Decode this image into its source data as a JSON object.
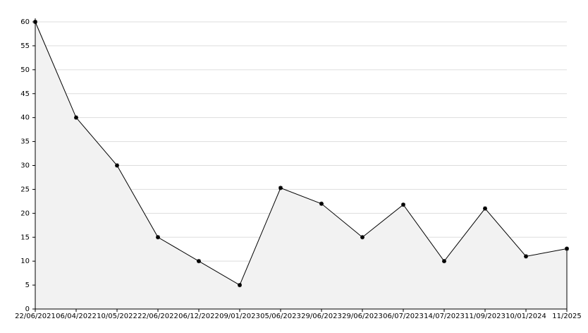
{
  "chart_data": {
    "type": "line",
    "categories": [
      "22/06/2021",
      "06/04/2022",
      "10/05/2022",
      "22/06/2022",
      "06/12/2022",
      "09/01/2023",
      "05/06/2023",
      "29/06/2023",
      "29/06/2023",
      "06/07/2023",
      "14/07/2023",
      "11/09/2023",
      "10/01/2024",
      "11/2025"
    ],
    "values": [
      60,
      40,
      30,
      15,
      10,
      5,
      25.3,
      22,
      15,
      21.8,
      10,
      21,
      11,
      12.6
    ],
    "color": "#000000",
    "fill": "#f2f2f2",
    "ylim": [
      0,
      60
    ],
    "yticks": [
      0,
      5,
      10,
      15,
      20,
      25,
      30,
      35,
      40,
      45,
      50,
      55,
      60
    ],
    "grid": true
  }
}
